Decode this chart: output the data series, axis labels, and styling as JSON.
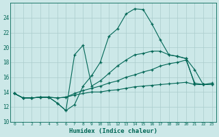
{
  "xlabel": "Humidex (Indice chaleur)",
  "xlim": [
    -0.5,
    23.5
  ],
  "ylim": [
    10,
    26
  ],
  "yticks": [
    10,
    12,
    14,
    16,
    18,
    20,
    22,
    24
  ],
  "xticks": [
    0,
    1,
    2,
    3,
    4,
    5,
    6,
    7,
    8,
    9,
    10,
    11,
    12,
    13,
    14,
    15,
    16,
    17,
    18,
    19,
    20,
    21,
    22,
    23
  ],
  "bg_color": "#cce8e8",
  "grid_color": "#aacccc",
  "line_color": "#006655",
  "lines": [
    {
      "x": [
        0,
        1,
        2,
        3,
        4,
        5,
        6,
        7,
        8,
        9,
        10,
        11,
        12,
        13,
        14,
        15,
        16,
        17,
        18,
        19,
        20,
        21,
        22,
        23
      ],
      "y": [
        13.8,
        13.2,
        13.2,
        13.3,
        13.3,
        12.5,
        11.5,
        12.3,
        14.8,
        16.2,
        18.0,
        21.5,
        22.5,
        24.5,
        25.2,
        25.1,
        23.2,
        21.0,
        19.0,
        18.8,
        18.5,
        17.0,
        15.0,
        15.0
      ]
    },
    {
      "x": [
        0,
        1,
        2,
        3,
        4,
        5,
        6,
        7,
        8,
        9,
        10,
        11,
        12,
        13,
        14,
        15,
        16,
        17,
        18,
        19,
        20,
        21,
        22,
        23
      ],
      "y": [
        13.8,
        13.2,
        13.2,
        13.3,
        13.3,
        12.5,
        11.5,
        19.0,
        20.3,
        14.8,
        15.5,
        16.5,
        17.5,
        18.3,
        19.0,
        19.2,
        19.5,
        19.5,
        19.0,
        18.8,
        18.5,
        15.0,
        15.0,
        15.0
      ]
    },
    {
      "x": [
        0,
        1,
        2,
        3,
        4,
        5,
        6,
        7,
        8,
        9,
        10,
        11,
        12,
        13,
        14,
        15,
        16,
        17,
        18,
        19,
        20,
        21,
        22,
        23
      ],
      "y": [
        13.8,
        13.2,
        13.2,
        13.3,
        13.3,
        13.2,
        13.3,
        13.8,
        14.2,
        14.5,
        14.8,
        15.2,
        15.5,
        16.0,
        16.3,
        16.7,
        17.0,
        17.5,
        17.8,
        18.0,
        18.3,
        15.2,
        15.0,
        15.2
      ]
    },
    {
      "x": [
        0,
        1,
        2,
        3,
        4,
        5,
        6,
        7,
        8,
        9,
        10,
        11,
        12,
        13,
        14,
        15,
        16,
        17,
        18,
        19,
        20,
        21,
        22,
        23
      ],
      "y": [
        13.8,
        13.2,
        13.2,
        13.3,
        13.3,
        13.2,
        13.3,
        13.6,
        13.8,
        14.0,
        14.0,
        14.2,
        14.3,
        14.5,
        14.7,
        14.8,
        14.9,
        15.0,
        15.1,
        15.2,
        15.3,
        15.0,
        15.0,
        15.0
      ]
    }
  ]
}
